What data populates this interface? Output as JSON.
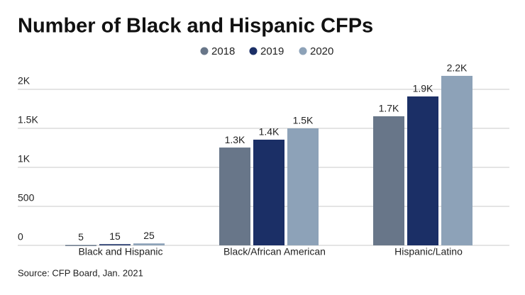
{
  "chart_data": {
    "type": "bar",
    "title": "Number of Black and Hispanic CFPs",
    "categories": [
      "Black and Hispanic",
      "Black/African American",
      "Hispanic/Latino"
    ],
    "series": [
      {
        "name": "2018",
        "color": "#687689",
        "values": [
          5,
          1254,
          1655
        ],
        "value_labels": [
          "5",
          "1.3K",
          "1.7K"
        ]
      },
      {
        "name": "2019",
        "color": "#1b2f66",
        "values": [
          15,
          1355,
          1909
        ],
        "value_labels": [
          "15",
          "1.4K",
          "1.9K"
        ]
      },
      {
        "name": "2020",
        "color": "#8da2b8",
        "values": [
          25,
          1500,
          2173
        ],
        "value_labels": [
          "25",
          "1.5K",
          "2.2K"
        ]
      }
    ],
    "ylim": [
      0,
      2250
    ],
    "yticks": [
      0,
      500,
      {
        "value": 1000,
        "label": "1K"
      },
      {
        "value": 1500,
        "label": "1.5K"
      },
      {
        "value": 2000,
        "label": "2K"
      }
    ],
    "grid": true,
    "source": "Source: CFP Board, Jan. 2021"
  }
}
